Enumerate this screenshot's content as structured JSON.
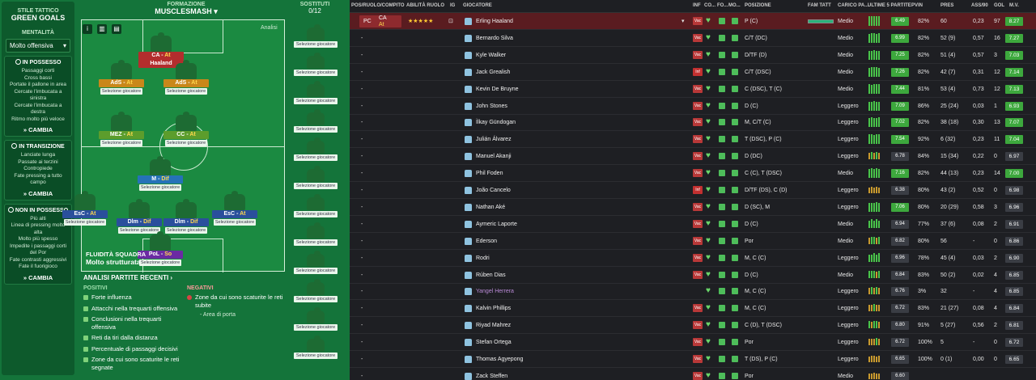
{
  "tactic": {
    "style_label": "STILE TATTICO",
    "style_value": "GREEN GOALS",
    "mentality_label": "MENTALITÀ",
    "mentality_value": "Molto offensiva",
    "in_possession": {
      "title": "IN POSSESSO",
      "items": [
        "Passaggi corti",
        "Cross bassi",
        "Portate il pallone in area",
        "Cercate l'imbucata a sinistra",
        "Cercate l'imbucata a destra",
        "Ritmo molto più veloce"
      ],
      "change": "CAMBIA"
    },
    "transition": {
      "title": "IN TRANSIZIONE",
      "items": [
        "Lanciate lunga",
        "Passate ai terzini",
        "Contropiede",
        "Fate pressing a tutto campo"
      ],
      "change": "CAMBIA"
    },
    "out_possession": {
      "title": "NON IN POSSESSO",
      "items": [
        "Più alti",
        "Linea di pressing molto alta",
        "Molto più spesso",
        "Impedite i passaggi corti del Por",
        "Fate contrasti aggressivi",
        "Fate il fuorigioco"
      ],
      "change": "CAMBIA"
    },
    "formation_label": "FORMAZIONE",
    "formation_value": "MUSCLESMASH",
    "subs_label": "SOSTITUTI",
    "subs_count": "0/12",
    "analysis_btn": "Analisi",
    "select_player": "Selezione giocatore",
    "positions": [
      {
        "role": "CA",
        "duty": "At",
        "name": "Haaland",
        "color": "#b32d2d"
      },
      {
        "role": "AdS",
        "duty": "At",
        "name": "",
        "color": "#c9871a"
      },
      {
        "role": "AdS",
        "duty": "At",
        "name": "",
        "color": "#c9871a"
      },
      {
        "role": "MEZ",
        "duty": "At",
        "name": "",
        "color": "#5c9d2c"
      },
      {
        "role": "CC",
        "duty": "At",
        "name": "",
        "color": "#5c9d2c"
      },
      {
        "role": "M",
        "duty": "Dif",
        "name": "",
        "color": "#2572b8"
      },
      {
        "role": "EsC",
        "duty": "At",
        "name": "",
        "color": "#2a4f9c"
      },
      {
        "role": "Dlm",
        "duty": "Dif",
        "name": "",
        "color": "#2a4f9c"
      },
      {
        "role": "Dlm",
        "duty": "Dif",
        "name": "",
        "color": "#2a4f9c"
      },
      {
        "role": "EsC",
        "duty": "At",
        "name": "",
        "color": "#2a4f9c"
      },
      {
        "role": "PoL",
        "duty": "So",
        "name": "",
        "color": "#6b2aa3"
      }
    ],
    "fluidity_label": "FLUIDITÀ SQUADRA",
    "fluidity_value": "Molto strutturata",
    "recent_title": "ANALISI PARTITE RECENTI",
    "positives_label": "POSITIVI",
    "positives": [
      "Forte influenza",
      "Attacchi nella trequarti offensiva",
      "Conclusioni nella trequarti offensiva",
      "Reti da tiri dalla distanza",
      "Percentuale di passaggi decisivi",
      "Zone da cui sono scaturite le reti segnate"
    ],
    "negatives_label": "NEGATIVI",
    "negatives": [
      "Zone da cui sono scaturite le reti subite"
    ],
    "negatives_sub": "- Area di porta"
  },
  "table": {
    "headers": [
      "POS/RUOLO/COMPITO",
      "ABILITÀ RUOLO",
      "IG",
      "GIOCATORE",
      "INF",
      "CO...",
      "FO...",
      "MO...",
      "POSIZIONE",
      "FAM TATT",
      "CARICO PA...",
      "ULTIME 5 PARTITE",
      "PVIN",
      "PRES",
      "ASS/90",
      "GOL",
      "M.V."
    ],
    "first_row_pos": "PC",
    "first_row_role": "CA",
    "first_row_duty": "At",
    "first_row_stars": "★★★★★",
    "rows": [
      {
        "name": "Erling Haaland",
        "inf": "Vac",
        "pos": "P (C)",
        "load": "Medio",
        "rat": "6.49",
        "pvin": "82%",
        "pres": "60",
        "ass": "0,23",
        "gol": "97",
        "mv": "8.27",
        "form": [
          9,
          9,
          9,
          9,
          9
        ],
        "mvc": "#3da83d",
        "ratc": "#3da83d"
      },
      {
        "name": "Bernardo Silva",
        "inf": "Vac",
        "pos": "C/T (DC)",
        "load": "Medio",
        "rat": "6.99",
        "pvin": "82%",
        "pres": "52 (9)",
        "ass": "0,57",
        "gol": "16",
        "mv": "7.27",
        "form": [
          8,
          9,
          9,
          8,
          9
        ],
        "mvc": "#3da83d",
        "ratc": "#3da83d"
      },
      {
        "name": "Kyle Walker",
        "inf": "Vac",
        "pos": "D/TF (D)",
        "load": "Medio",
        "rat": "7.25",
        "pvin": "82%",
        "pres": "51 (4)",
        "ass": "0,57",
        "gol": "3",
        "mv": "7.03",
        "form": [
          8,
          8,
          9,
          8,
          8
        ],
        "mvc": "#3da83d",
        "ratc": "#3da83d"
      },
      {
        "name": "Jack Grealish",
        "inf": "Inf",
        "pos": "C/T (DSC)",
        "load": "Medio",
        "rat": "7.26",
        "pvin": "82%",
        "pres": "42 (7)",
        "ass": "0,31",
        "gol": "12",
        "mv": "7.14",
        "form": [
          8,
          9,
          9,
          9,
          8
        ],
        "mvc": "#3da83d",
        "ratc": "#3da83d"
      },
      {
        "name": "Kevin De Bruyne",
        "inf": "Vac",
        "pos": "C (DSC), T (C)",
        "load": "Medio",
        "rat": "7.44",
        "pvin": "81%",
        "pres": "53 (4)",
        "ass": "0,73",
        "gol": "12",
        "mv": "7.13",
        "form": [
          9,
          8,
          9,
          9,
          9
        ],
        "mvc": "#3da83d",
        "ratc": "#3da83d"
      },
      {
        "name": "John Stones",
        "inf": "Vac",
        "pos": "D (C)",
        "load": "Leggero",
        "rat": "7.09",
        "pvin": "86%",
        "pres": "25 (24)",
        "ass": "0,03",
        "gol": "1",
        "mv": "6.93",
        "form": [
          8,
          8,
          9,
          8,
          8
        ],
        "mvc": "#3da83d",
        "ratc": "#3da83d"
      },
      {
        "name": "İlkay Gündogan",
        "inf": "Vac",
        "pos": "M, C/T (C)",
        "load": "Leggero",
        "rat": "7.02",
        "pvin": "82%",
        "pres": "38 (18)",
        "ass": "0,30",
        "gol": "13",
        "mv": "7.07",
        "form": [
          8,
          9,
          8,
          8,
          9
        ],
        "mvc": "#3da83d",
        "ratc": "#3da83d"
      },
      {
        "name": "Julián Álvarez",
        "inf": "Vac",
        "pos": "T (DSC), P (C)",
        "load": "Leggero",
        "rat": "7.54",
        "pvin": "92%",
        "pres": "6 (32)",
        "ass": "0,23",
        "gol": "11",
        "mv": "7.04",
        "form": [
          9,
          9,
          8,
          9,
          9
        ],
        "mvc": "#3da83d",
        "ratc": "#3da83d"
      },
      {
        "name": "Manuel Akanji",
        "inf": "Vac",
        "pos": "D (DC)",
        "load": "Leggero",
        "rat": "6.78",
        "pvin": "84%",
        "pres": "15 (34)",
        "ass": "0,22",
        "gol": "0",
        "mv": "6.97",
        "form": [
          6,
          7,
          6,
          7,
          6
        ],
        "mvc": "#3a3d44",
        "ratc": "#3a3d44"
      },
      {
        "name": "Phil Foden",
        "inf": "Vac",
        "pos": "C (C), T (DSC)",
        "load": "Medio",
        "rat": "7.16",
        "pvin": "82%",
        "pres": "44 (13)",
        "ass": "0,23",
        "gol": "14",
        "mv": "7.00",
        "form": [
          8,
          9,
          8,
          9,
          8
        ],
        "mvc": "#3da83d",
        "ratc": "#3da83d"
      },
      {
        "name": "João Cancelo",
        "inf": "Inf",
        "pos": "D/TF (DS), C (D)",
        "load": "Leggero",
        "rat": "6.38",
        "pvin": "80%",
        "pres": "43 (2)",
        "ass": "0,52",
        "gol": "0",
        "mv": "6.98",
        "form": [
          5,
          6,
          5,
          6,
          5
        ],
        "mvc": "#3a3d44",
        "ratc": "#3a3d44"
      },
      {
        "name": "Nathan Aké",
        "inf": "Vac",
        "pos": "D (SC), M",
        "load": "Leggero",
        "rat": "7.06",
        "pvin": "80%",
        "pres": "20 (29)",
        "ass": "0,58",
        "gol": "3",
        "mv": "6.96",
        "form": [
          8,
          8,
          8,
          9,
          8
        ],
        "mvc": "#3a3d44",
        "ratc": "#3da83d"
      },
      {
        "name": "Aymeric Laporte",
        "inf": "Vac",
        "pos": "D (C)",
        "load": "Medio",
        "rat": "6.94",
        "pvin": "77%",
        "pres": "37 (6)",
        "ass": "0,08",
        "gol": "2",
        "mv": "6.91",
        "form": [
          7,
          8,
          7,
          8,
          7
        ],
        "mvc": "#3a3d44",
        "ratc": "#3a3d44"
      },
      {
        "name": "Ederson",
        "inf": "Vac",
        "pos": "Por",
        "load": "Medio",
        "rat": "6.82",
        "pvin": "80%",
        "pres": "56",
        "ass": "-",
        "gol": "0",
        "mv": "6.86",
        "form": [
          6,
          7,
          7,
          6,
          7
        ],
        "mvc": "#3a3d44",
        "ratc": "#3a3d44"
      },
      {
        "name": "Rodri",
        "inf": "Vac",
        "pos": "M, C (C)",
        "load": "Leggero",
        "rat": "6.96",
        "pvin": "78%",
        "pres": "45 (4)",
        "ass": "0,03",
        "gol": "2",
        "mv": "6.90",
        "form": [
          7,
          7,
          8,
          7,
          8
        ],
        "mvc": "#3a3d44",
        "ratc": "#3a3d44"
      },
      {
        "name": "Rúben Dias",
        "inf": "Vac",
        "pos": "D (C)",
        "load": "Medio",
        "rat": "6.84",
        "pvin": "83%",
        "pres": "50 (2)",
        "ass": "0,02",
        "gol": "4",
        "mv": "6.85",
        "form": [
          7,
          7,
          7,
          6,
          7
        ],
        "mvc": "#3a3d44",
        "ratc": "#3a3d44"
      },
      {
        "name": "Yangel Herrera",
        "inf": "",
        "pos": "M, C (C)",
        "load": "Leggero",
        "rat": "6.76",
        "pvin": "3%",
        "pres": "32",
        "ass": "-",
        "gol": "4",
        "mv": "6.85",
        "form": [
          6,
          7,
          6,
          7,
          6
        ],
        "mvc": "#3a3d44",
        "ratc": "#3a3d44",
        "loan": true
      },
      {
        "name": "Kalvin Phillips",
        "inf": "Vac",
        "pos": "M, C (C)",
        "load": "Leggero",
        "rat": "6.72",
        "pvin": "83%",
        "pres": "21 (27)",
        "ass": "0,08",
        "gol": "4",
        "mv": "6.84",
        "form": [
          6,
          6,
          7,
          6,
          6
        ],
        "mvc": "#3a3d44",
        "ratc": "#3a3d44"
      },
      {
        "name": "Riyad Mahrez",
        "inf": "Vac",
        "pos": "C (D), T (DSC)",
        "load": "Leggero",
        "rat": "6.80",
        "pvin": "91%",
        "pres": "5 (27)",
        "ass": "0,56",
        "gol": "2",
        "mv": "6.81",
        "form": [
          7,
          6,
          7,
          7,
          6
        ],
        "mvc": "#3a3d44",
        "ratc": "#3a3d44"
      },
      {
        "name": "Stefan Ortega",
        "inf": "Vac",
        "pos": "Por",
        "load": "Leggero",
        "rat": "6.72",
        "pvin": "100%",
        "pres": "5",
        "ass": "-",
        "gol": "0",
        "mv": "6.72",
        "form": [
          6,
          6,
          6,
          7,
          6
        ],
        "mvc": "#3a3d44",
        "ratc": "#3a3d44"
      },
      {
        "name": "Thomas Agyepong",
        "inf": "Vac",
        "pos": "T (DS), P (C)",
        "load": "Leggero",
        "rat": "6.65",
        "pvin": "100%",
        "pres": "0 (1)",
        "ass": "0,00",
        "gol": "0",
        "mv": "6.65",
        "form": [
          5,
          6,
          6,
          5,
          6
        ],
        "mvc": "#3a3d44",
        "ratc": "#3a3d44"
      },
      {
        "name": "Zack Steffen",
        "inf": "Vac",
        "pos": "Por",
        "load": "Medio",
        "rat": "6.60",
        "pvin": "",
        "pres": "",
        "ass": "",
        "gol": "",
        "mv": "",
        "form": [
          5,
          5,
          6,
          5,
          5
        ],
        "mvc": "#3a3d44",
        "ratc": "#3a3d44"
      }
    ]
  }
}
